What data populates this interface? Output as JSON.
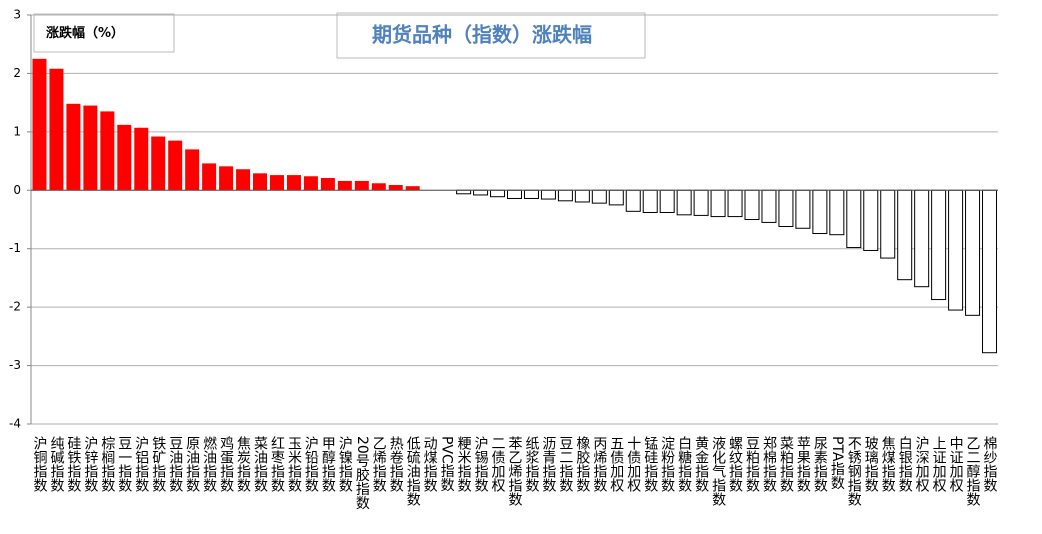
{
  "chart_data": {
    "type": "bar",
    "title": "期货品种（指数）涨跌幅",
    "categories": [
      "沪铜指数",
      "纯碱指数",
      "硅铁指数",
      "沪锌指数",
      "棕榈指数",
      "豆一指数",
      "沪铝指数",
      "铁矿指数",
      "豆油指数",
      "原油指数",
      "燃油指数",
      "鸡蛋指数",
      "焦炭指数",
      "菜油指数",
      "红枣指数",
      "玉米指数",
      "沪铅指数",
      "甲醇指数",
      "沪镍指数",
      "20号胶指数",
      "乙烯指数",
      "热卷指数",
      "低硫油指数",
      "动煤指数",
      "PVC指数",
      "粳米指数",
      "沪锡指数",
      "二债加权",
      "苯乙烯指数",
      "纸浆指数",
      "沥青指数",
      "豆二指数",
      "橡胶指数",
      "丙烯指数",
      "五债加权",
      "十债加权",
      "锰硅指数",
      "淀粉指数",
      "白糖指数",
      "黄金指数",
      "液化气指数",
      "螺纹指数",
      "豆粕指数",
      "郑棉指数",
      "菜粕指数",
      "苹果指数",
      "尿素指数",
      "PTA指数",
      "不锈钢指数",
      "玻璃指数",
      "焦煤指数",
      "白银指数",
      "沪深加权",
      "上证加权",
      "中证加权",
      "乙二醇指数",
      "棉纱指数"
    ],
    "series": [
      {
        "name": "涨跌幅（%）",
        "values": [
          2.25,
          2.08,
          1.48,
          1.45,
          1.35,
          1.12,
          1.07,
          0.92,
          0.85,
          0.7,
          0.46,
          0.41,
          0.36,
          0.29,
          0.26,
          0.26,
          0.24,
          0.21,
          0.16,
          0.16,
          0.12,
          0.09,
          0.07,
          0,
          0,
          -0.06,
          -0.08,
          -0.11,
          -0.14,
          -0.14,
          -0.15,
          -0.18,
          -0.2,
          -0.22,
          -0.25,
          -0.36,
          -0.38,
          -0.38,
          -0.42,
          -0.43,
          -0.45,
          -0.45,
          -0.5,
          -0.55,
          -0.62,
          -0.65,
          -0.74,
          -0.76,
          -0.98,
          -1.03,
          -1.16,
          -1.53,
          -1.65,
          -1.87,
          -2.05,
          -2.14,
          -2.78
        ]
      }
    ],
    "positive_color": "#ff0000",
    "negative_color": "#ffffff",
    "ylim": [
      -4,
      3
    ],
    "yticks": [
      -4,
      -3,
      -2,
      -1,
      0,
      1,
      2,
      3
    ],
    "grid": true
  }
}
